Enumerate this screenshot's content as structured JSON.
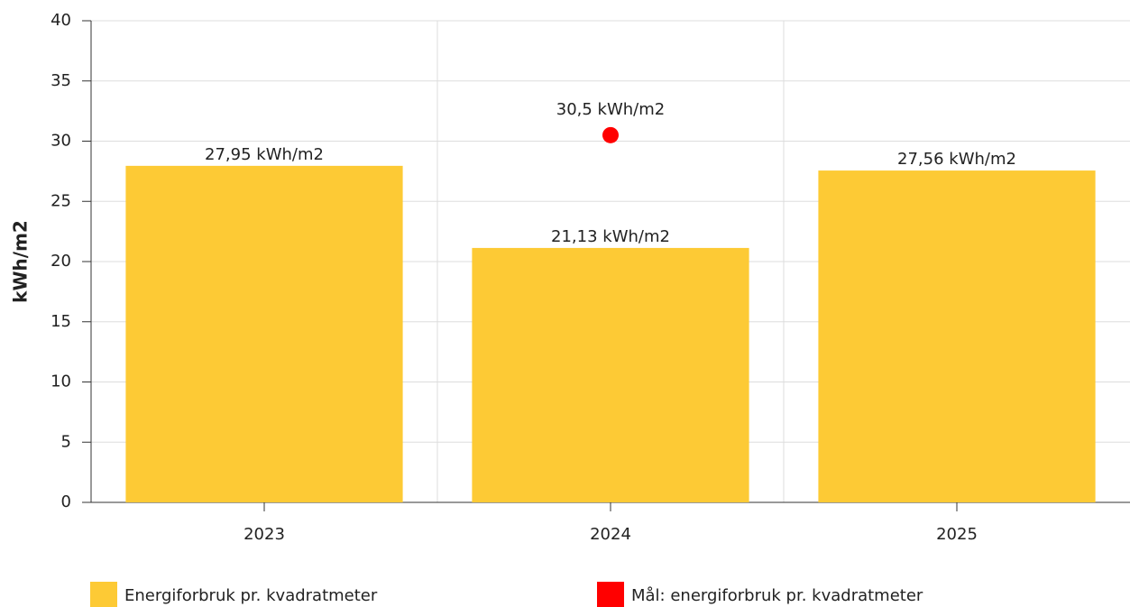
{
  "chart_data": {
    "type": "bar",
    "y_label": "kWh/m2",
    "categories": [
      "2023",
      "2024",
      "2025"
    ],
    "series": [
      {
        "name": "Energiforbruk pr. kvadratmeter",
        "color": "#fdca35",
        "type": "bar",
        "values": [
          27.95,
          21.13,
          27.56
        ],
        "value_labels": [
          "27,95 kWh/m2",
          "21,13 kWh/m2",
          "27,56 kWh/m2"
        ]
      },
      {
        "name": "Mål: energiforbruk pr. kvadratmeter",
        "color": "#ff0000",
        "type": "scatter",
        "values": [
          null,
          30.5,
          null
        ],
        "value_labels": [
          null,
          "30,5 kWh/m2",
          null
        ]
      }
    ],
    "ylim": [
      0,
      40
    ],
    "yticks": [
      0,
      5,
      10,
      15,
      20,
      25,
      30,
      35,
      40
    ],
    "grid": true
  }
}
